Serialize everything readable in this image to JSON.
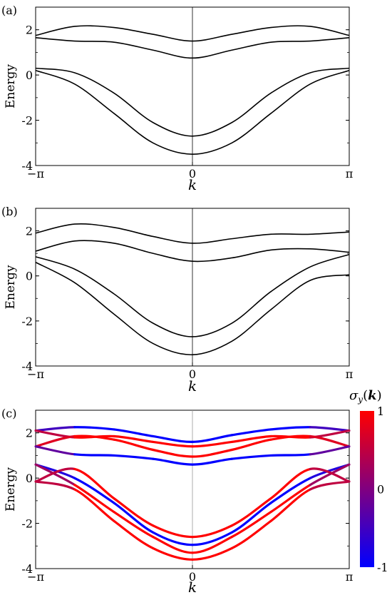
{
  "colors": {
    "up": "#ff0000",
    "down": "#0000ff",
    "line": "#000000"
  },
  "chart_data": [
    {
      "panel_label": "(a)",
      "type": "line",
      "xlabel": "k",
      "ylabel": "Energy",
      "xlim": [
        -3.14159,
        3.14159
      ],
      "ylim": [
        -4,
        3
      ],
      "xticks": [
        {
          "v": -3.14159,
          "label": "−π"
        },
        {
          "v": 0,
          "label": "0"
        },
        {
          "v": 3.14159,
          "label": "π"
        }
      ],
      "yticks": [
        {
          "v": 2,
          "label": "2"
        },
        {
          "v": 0,
          "label": "0"
        },
        {
          "v": -2,
          "label": "-2"
        },
        {
          "v": -4,
          "label": "-4"
        }
      ],
      "x": [
        -3.14,
        -2.36,
        -1.57,
        -0.79,
        0,
        0.79,
        1.57,
        2.36,
        3.14
      ],
      "series": [
        {
          "values": [
            1.75,
            2.15,
            2.1,
            1.8,
            1.5,
            1.8,
            2.1,
            2.15,
            1.75
          ]
        },
        {
          "values": [
            1.65,
            1.5,
            1.45,
            1.1,
            0.75,
            1.1,
            1.45,
            1.5,
            1.65
          ]
        },
        {
          "values": [
            0.3,
            0.1,
            -0.8,
            -2.1,
            -2.7,
            -2.1,
            -0.8,
            0.1,
            0.3
          ]
        },
        {
          "values": [
            0.2,
            -0.4,
            -1.7,
            -3.0,
            -3.5,
            -3.0,
            -1.7,
            -0.4,
            0.2
          ]
        }
      ]
    },
    {
      "panel_label": "(b)",
      "type": "line",
      "xlabel": "k",
      "ylabel": "Energy",
      "xlim": [
        -3.14159,
        3.14159
      ],
      "ylim": [
        -4,
        3
      ],
      "xticks": [
        {
          "v": -3.14159,
          "label": "−π"
        },
        {
          "v": 0,
          "label": "0"
        },
        {
          "v": 3.14159,
          "label": "π"
        }
      ],
      "yticks": [
        {
          "v": 2,
          "label": "2"
        },
        {
          "v": 0,
          "label": "0"
        },
        {
          "v": -2,
          "label": "-2"
        },
        {
          "v": -4,
          "label": "-4"
        }
      ],
      "x": [
        -3.14,
        -2.36,
        -1.57,
        -0.79,
        0,
        0.79,
        1.57,
        2.36,
        3.14
      ],
      "series": [
        {
          "values": [
            1.9,
            2.3,
            2.15,
            1.75,
            1.45,
            1.65,
            1.85,
            1.85,
            1.95
          ]
        },
        {
          "values": [
            1.1,
            1.55,
            1.45,
            1.0,
            0.65,
            0.8,
            1.15,
            1.2,
            1.05
          ]
        },
        {
          "values": [
            0.85,
            0.3,
            -0.8,
            -2.1,
            -2.7,
            -2.1,
            -0.7,
            0.4,
            0.95
          ]
        },
        {
          "values": [
            0.6,
            -0.3,
            -1.7,
            -3.0,
            -3.5,
            -2.9,
            -1.5,
            -0.2,
            0.05
          ]
        }
      ]
    },
    {
      "panel_label": "(c)",
      "type": "line",
      "xlabel": "k",
      "ylabel": "Energy",
      "xlim": [
        -3.14159,
        3.14159
      ],
      "ylim": [
        -4,
        3
      ],
      "xticks": [
        {
          "v": -3.14159,
          "label": "−π"
        },
        {
          "v": 0,
          "label": "0"
        },
        {
          "v": 3.14159,
          "label": "π"
        }
      ],
      "yticks": [
        {
          "v": 2,
          "label": "2"
        },
        {
          "v": 0,
          "label": "0"
        },
        {
          "v": -2,
          "label": "-2"
        },
        {
          "v": -4,
          "label": "-4"
        }
      ],
      "colorbar": {
        "label": "σy(k)",
        "ticks": [
          {
            "v": 1,
            "label": "1"
          },
          {
            "v": 0,
            "label": "0"
          },
          {
            "v": -1,
            "label": "-1"
          }
        ],
        "range": [
          -1,
          1
        ]
      },
      "x": [
        -3.14,
        -2.36,
        -1.57,
        -0.79,
        0,
        0.79,
        1.57,
        2.36,
        3.14
      ],
      "series": [
        {
          "values": [
            2.1,
            2.25,
            2.15,
            1.85,
            1.6,
            1.9,
            2.15,
            2.25,
            2.1
          ],
          "sigma": [
            0.0,
            -1,
            -1,
            -1,
            -1,
            -1,
            -1,
            -1,
            0.0
          ]
        },
        {
          "values": [
            2.1,
            1.8,
            1.85,
            1.6,
            1.4,
            1.6,
            1.85,
            1.8,
            2.1
          ],
          "sigma": [
            0.0,
            1,
            1,
            1,
            1,
            1,
            1,
            1,
            0.0
          ]
        },
        {
          "values": [
            1.4,
            1.85,
            1.7,
            1.25,
            0.95,
            1.25,
            1.7,
            1.85,
            1.4
          ],
          "sigma": [
            0.5,
            1,
            1,
            1,
            1,
            1,
            1,
            1,
            0.5
          ]
        },
        {
          "values": [
            1.4,
            1.05,
            1.0,
            0.85,
            0.6,
            0.85,
            1.0,
            1.05,
            1.4
          ],
          "sigma": [
            0.5,
            -1,
            -1,
            -1,
            -1,
            -1,
            -1,
            -1,
            0.5
          ]
        },
        {
          "values": [
            0.6,
            0.0,
            -1.1,
            -2.4,
            -2.95,
            -2.4,
            -1.1,
            0.0,
            0.6
          ],
          "sigma": [
            -0.5,
            -1,
            -1,
            -1,
            -1,
            -1,
            -1,
            -1,
            -0.5
          ]
        },
        {
          "values": [
            0.6,
            -0.3,
            -1.5,
            -2.6,
            -3.3,
            -2.6,
            -1.5,
            -0.3,
            0.6
          ],
          "sigma": [
            -0.5,
            1,
            1,
            1,
            1,
            1,
            1,
            1,
            -0.5
          ]
        },
        {
          "values": [
            -0.15,
            0.4,
            -0.9,
            -2.1,
            -2.6,
            -2.1,
            -0.9,
            0.4,
            -0.15
          ],
          "sigma": [
            0.0,
            1,
            1,
            1,
            1,
            1,
            1,
            1,
            0.0
          ]
        },
        {
          "values": [
            -0.15,
            -0.5,
            -1.9,
            -3.1,
            -3.6,
            -3.1,
            -1.9,
            -0.5,
            -0.15
          ],
          "sigma": [
            0.0,
            1,
            1,
            1,
            1,
            1,
            1,
            1,
            0.0
          ]
        }
      ]
    }
  ]
}
